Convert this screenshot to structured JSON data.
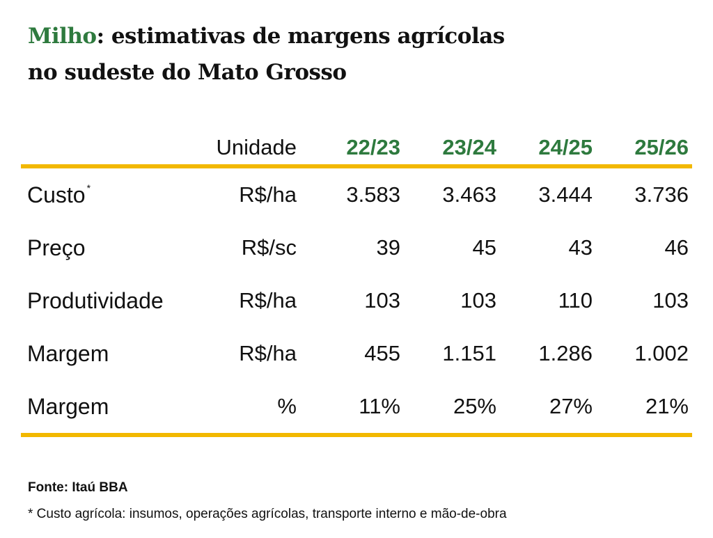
{
  "title": {
    "highlight": "Milho",
    "rest_line1": ": estimativas de margens agrícolas",
    "line2": "no sudeste do Mato Grosso"
  },
  "colors": {
    "accent_green": "#2e7a3e",
    "rule_yellow": "#f2b800"
  },
  "chart_data": {
    "type": "table",
    "columns": [
      "Unidade",
      "22/23",
      "23/24",
      "24/25",
      "25/26"
    ],
    "rows": [
      {
        "label": "Custo",
        "marker": "*",
        "unit": "R$/ha",
        "values": [
          "3.583",
          "3.463",
          "3.444",
          "3.736"
        ]
      },
      {
        "label": "Preço",
        "marker": "",
        "unit": "R$/sc",
        "values": [
          "39",
          "45",
          "43",
          "46"
        ]
      },
      {
        "label": "Produtividade",
        "marker": "",
        "unit": "R$/ha",
        "values": [
          "103",
          "103",
          "110",
          "103"
        ]
      },
      {
        "label": "Margem",
        "marker": "",
        "unit": "R$/ha",
        "values": [
          "455",
          "1.151",
          "1.286",
          "1.002"
        ]
      },
      {
        "label": "Margem",
        "marker": "",
        "unit": "%",
        "values": [
          "11%",
          "25%",
          "27%",
          "21%"
        ]
      }
    ]
  },
  "source": "Fonte: Itaú BBA",
  "footnote": "* Custo agrícola: insumos, operações agrícolas, transporte interno e mão-de-obra"
}
